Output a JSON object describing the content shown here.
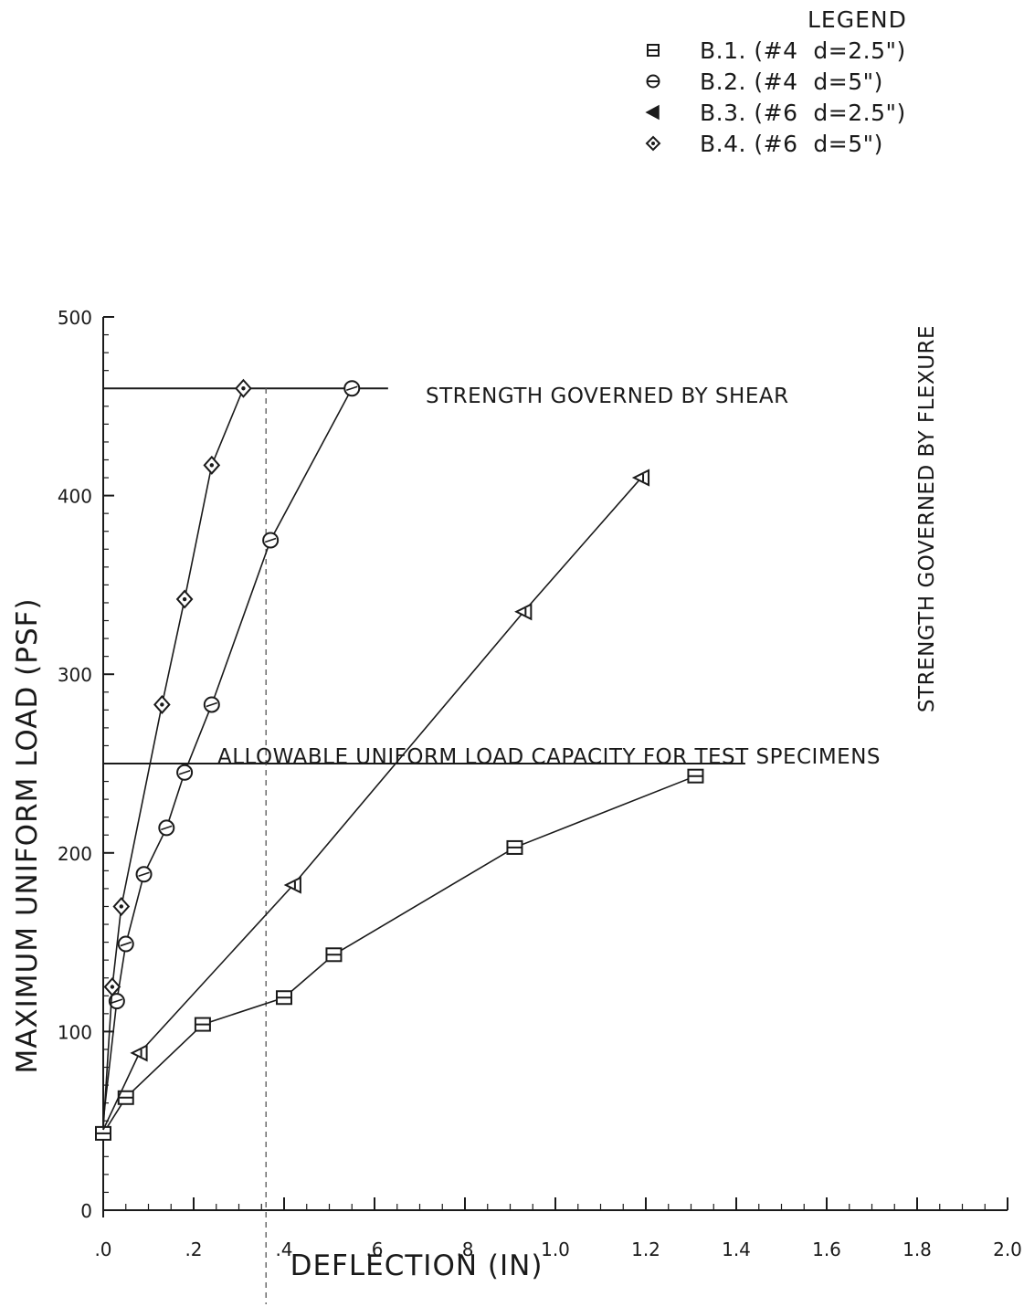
{
  "legend": {
    "title": "LEGEND",
    "items": [
      {
        "label": "B.1. (#4  d=2.5\")",
        "marker": "square"
      },
      {
        "label": "B.2. (#4  d=5\")",
        "marker": "circle"
      },
      {
        "label": "B.3. (#6  d=2.5\")",
        "marker": "triangle-left"
      },
      {
        "label": "B.4. (#6  d=5\")",
        "marker": "diamond"
      }
    ]
  },
  "chart_data": {
    "type": "line",
    "xlabel": "DEFLECTION (IN)",
    "ylabel": "MAXIMUM UNIFORM LOAD (PSF)",
    "xlim": [
      0,
      2.0
    ],
    "ylim": [
      0,
      500
    ],
    "x_ticks": [
      0,
      0.2,
      0.4,
      0.6,
      0.8,
      1.0,
      1.2,
      1.4,
      1.6,
      1.8,
      2.0
    ],
    "x_tick_labels": [
      ".0",
      ".2",
      ".4",
      ".6",
      ".8",
      "1.0",
      "1.2",
      "1.4",
      "1.6",
      "1.8",
      "2.0"
    ],
    "y_ticks": [
      0,
      100,
      200,
      300,
      400,
      500
    ],
    "y_tick_labels": [
      "0",
      "100",
      "200",
      "300",
      "400",
      "500"
    ],
    "grid": false,
    "legend_position": "top-right",
    "series": [
      {
        "name": "B.1. (#4  d=2.5\")",
        "marker": "square",
        "x": [
          0.0,
          0.05,
          0.22,
          0.4,
          0.51,
          0.91,
          1.31
        ],
        "y": [
          43,
          63,
          104,
          119,
          143,
          203,
          243
        ]
      },
      {
        "name": "B.2. (#4  d=5\")",
        "marker": "circle",
        "x": [
          0.0,
          0.03,
          0.05,
          0.09,
          0.14,
          0.18,
          0.24,
          0.37,
          0.55
        ],
        "y": [
          50,
          117,
          149,
          188,
          214,
          245,
          283,
          375,
          460
        ]
      },
      {
        "name": "B.3. (#6  d=2.5\")",
        "marker": "triangle-left",
        "x": [
          0.0,
          0.08,
          0.42,
          0.93,
          1.19
        ],
        "y": [
          45,
          88,
          182,
          335,
          410
        ]
      },
      {
        "name": "B.4. (#6  d=5\")",
        "marker": "diamond",
        "x": [
          0.0,
          0.02,
          0.04,
          0.13,
          0.18,
          0.24,
          0.31
        ],
        "y": [
          45,
          125,
          170,
          283,
          342,
          417,
          460
        ]
      }
    ],
    "reference_lines": [
      {
        "orientation": "horizontal",
        "y": 460,
        "x_start": 0,
        "x_end": 0.63,
        "label": "STRENGTH GOVERNED BY SHEAR"
      },
      {
        "orientation": "horizontal",
        "y": 250,
        "x_start": 0,
        "x_end": 1.42,
        "label": "ALLOWABLE UNIFORM LOAD CAPACITY FOR TEST SPECIMENS"
      },
      {
        "orientation": "vertical",
        "x": 0.36,
        "label": ""
      }
    ],
    "annotations": [
      {
        "text": "STRENGTH GOVERNED BY FLEXURE",
        "orientation": "vertical",
        "position": "right"
      }
    ]
  }
}
